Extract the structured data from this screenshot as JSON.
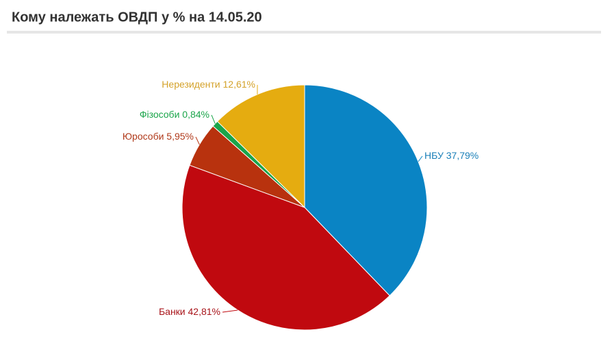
{
  "chart_data": {
    "type": "pie",
    "title": "Кому належать ОВДП у % на 14.05.20",
    "categories": [
      "НБУ",
      "Банки",
      "Юрособи",
      "Фізособи",
      "Нерезиденти"
    ],
    "values": [
      37.79,
      42.81,
      5.95,
      0.84,
      12.61
    ],
    "value_labels": [
      "37,79%",
      "42,81%",
      "5,95%",
      "0,84%",
      "12,61%"
    ],
    "colors": [
      "#0a84c4",
      "#c0090f",
      "#b8320e",
      "#1aa54a",
      "#e5ac10"
    ]
  }
}
